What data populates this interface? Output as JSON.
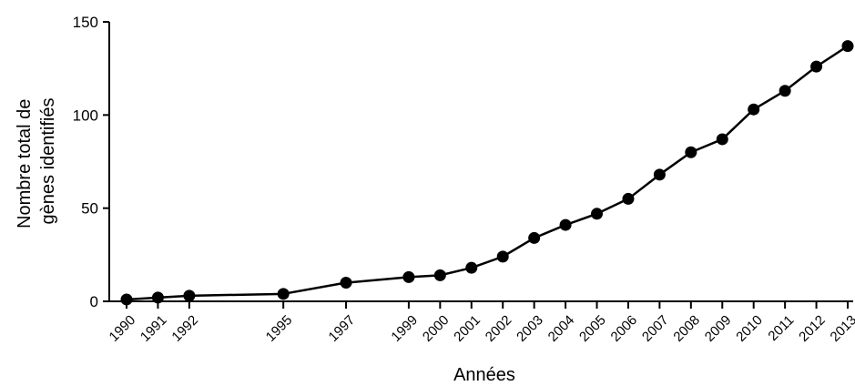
{
  "chart_data": {
    "type": "line",
    "title": "",
    "xlabel": "Années",
    "ylabel_lines": [
      "Nombre total de",
      "gènes identifiés"
    ],
    "ylim": [
      0,
      150
    ],
    "yticks": [
      0,
      50,
      100,
      150
    ],
    "xlim": [
      1990,
      2013
    ],
    "x": [
      1990,
      1991,
      1992,
      1995,
      1997,
      1999,
      2000,
      2001,
      2002,
      2003,
      2004,
      2005,
      2006,
      2007,
      2008,
      2009,
      2010,
      2011,
      2012,
      2013
    ],
    "series": [
      {
        "values": [
          1,
          2,
          3,
          4,
          10,
          13,
          14,
          18,
          24,
          34,
          41,
          47,
          55,
          68,
          80,
          87,
          103,
          113,
          126,
          137
        ]
      }
    ],
    "grid": false,
    "legend": "none",
    "line_color": "#000000"
  }
}
